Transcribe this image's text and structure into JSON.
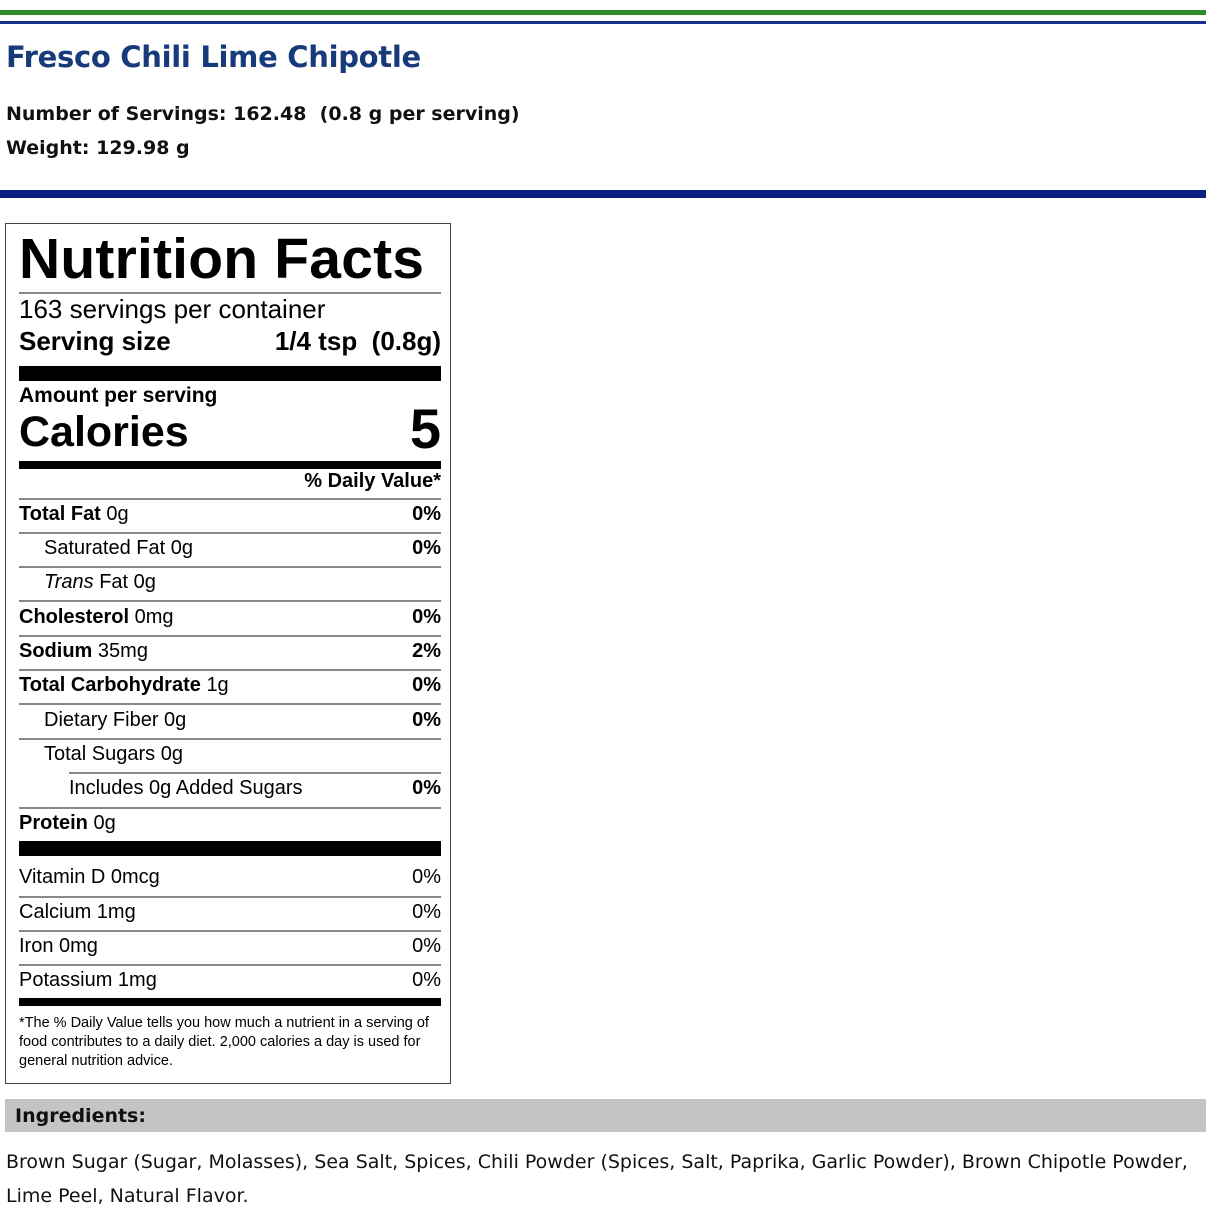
{
  "colors": {
    "top_rule_green": "#2e8b2a",
    "top_rule_blue": "#1b2f8f",
    "divider_blue": "#0d1e7e",
    "title_blue": "#173a7a",
    "ingredients_bar_gray": "#c4c4c4"
  },
  "product": {
    "title": "Fresco Chili Lime Chipotle",
    "servings_line": "Number of Servings: 162.48  (0.8 g per serving)",
    "weight_line": "Weight: 129.98 g"
  },
  "label": {
    "title": "Nutrition Facts",
    "servings_per_container": "163 servings per container",
    "serving_size_label": "Serving size",
    "serving_size_value": "1/4 tsp  (0.8g)",
    "amount_per_serving": "Amount per serving",
    "calories_label": "Calories",
    "calories_value": "5",
    "daily_value_header": "% Daily Value*",
    "nutrients": [
      {
        "name": "Total Fat",
        "amount": "0g",
        "dv": "0%"
      },
      {
        "name": "Saturated Fat",
        "amount": "0g",
        "dv": "0%"
      },
      {
        "name": "Trans",
        "amount": "Fat 0g",
        "dv": ""
      },
      {
        "name": "Cholesterol",
        "amount": "0mg",
        "dv": "0%"
      },
      {
        "name": "Sodium",
        "amount": "35mg",
        "dv": "2%"
      },
      {
        "name": "Total Carbohydrate",
        "amount": "1g",
        "dv": "0%"
      },
      {
        "name": "Dietary Fiber",
        "amount": "0g",
        "dv": "0%"
      },
      {
        "name": "Total Sugars",
        "amount": "0g",
        "dv": ""
      },
      {
        "name": "Includes 0g Added Sugars",
        "amount": "",
        "dv": "0%"
      },
      {
        "name": "Protein",
        "amount": "0g",
        "dv": ""
      }
    ],
    "vitamins": [
      {
        "name": "Vitamin D 0mcg",
        "dv": "0%"
      },
      {
        "name": "Calcium 1mg",
        "dv": "0%"
      },
      {
        "name": "Iron 0mg",
        "dv": "0%"
      },
      {
        "name": "Potassium 1mg",
        "dv": "0%"
      }
    ],
    "footnote": "*The % Daily Value tells you how much a nutrient in a serving of food contributes to a daily diet. 2,000 calories a day is used for general nutrition advice."
  },
  "ingredients": {
    "title": "Ingredients:",
    "text": "Brown Sugar (Sugar, Molasses), Sea Salt, Spices, Chili Powder (Spices, Salt, Paprika, Garlic Powder), Brown Chipotle Powder, Lime Peel, Natural Flavor."
  }
}
